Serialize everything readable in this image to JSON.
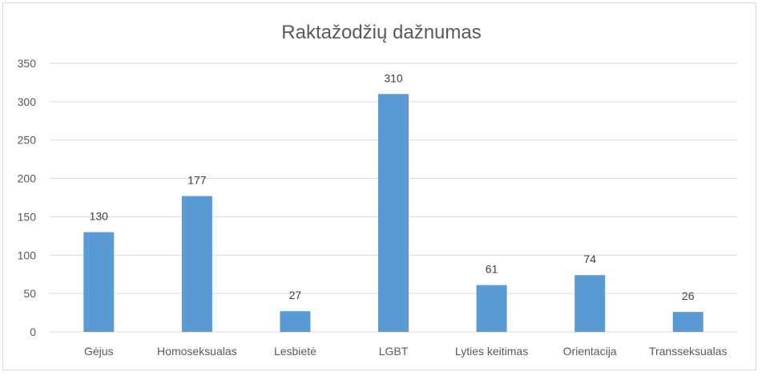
{
  "chart_data": {
    "type": "bar",
    "title": "Raktažodžių dažnumas",
    "xlabel": "",
    "ylabel": "",
    "categories": [
      "Gėjus",
      "Homoseksualas",
      "Lesbietė",
      "LGBT",
      "Lyties keitimas",
      "Orientacija",
      "Transseksualas"
    ],
    "values": [
      130,
      177,
      27,
      310,
      61,
      74,
      26
    ],
    "ylim": [
      0,
      350
    ],
    "yticks": [
      0,
      50,
      100,
      150,
      200,
      250,
      300,
      350
    ],
    "grid": true,
    "legend": "none",
    "data_labels": true,
    "bar_color": "#5b9bd5"
  }
}
